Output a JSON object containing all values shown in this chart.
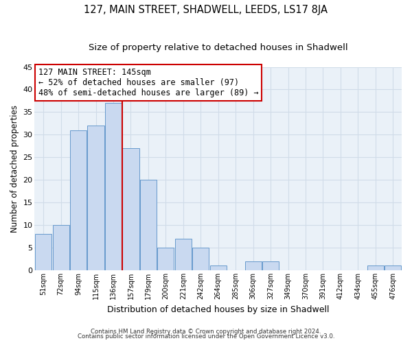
{
  "title": "127, MAIN STREET, SHADWELL, LEEDS, LS17 8JA",
  "subtitle": "Size of property relative to detached houses in Shadwell",
  "xlabel": "Distribution of detached houses by size in Shadwell",
  "ylabel": "Number of detached properties",
  "bin_labels": [
    "51sqm",
    "72sqm",
    "94sqm",
    "115sqm",
    "136sqm",
    "157sqm",
    "179sqm",
    "200sqm",
    "221sqm",
    "242sqm",
    "264sqm",
    "285sqm",
    "306sqm",
    "327sqm",
    "349sqm",
    "370sqm",
    "391sqm",
    "412sqm",
    "434sqm",
    "455sqm",
    "476sqm"
  ],
  "bar_heights": [
    8,
    10,
    31,
    32,
    37,
    27,
    20,
    5,
    7,
    5,
    1,
    0,
    2,
    2,
    0,
    0,
    0,
    0,
    0,
    1,
    1
  ],
  "bar_color": "#c9d9f0",
  "bar_edge_color": "#6699cc",
  "ylim": [
    0,
    45
  ],
  "yticks": [
    0,
    5,
    10,
    15,
    20,
    25,
    30,
    35,
    40,
    45
  ],
  "vline_x": 4.5,
  "vline_color": "#cc0000",
  "annotation_title": "127 MAIN STREET: 145sqm",
  "annotation_line1": "← 52% of detached houses are smaller (97)",
  "annotation_line2": "48% of semi-detached houses are larger (89) →",
  "annotation_box_color": "#ffffff",
  "annotation_box_edge": "#cc0000",
  "footer1": "Contains HM Land Registry data © Crown copyright and database right 2024.",
  "footer2": "Contains public sector information licensed under the Open Government Licence v3.0.",
  "background_color": "#ffffff",
  "plot_bg_color": "#eaf1f8",
  "grid_color": "#d0dce8",
  "title_fontsize": 10.5,
  "subtitle_fontsize": 9.5,
  "annotation_fontsize": 8.5
}
